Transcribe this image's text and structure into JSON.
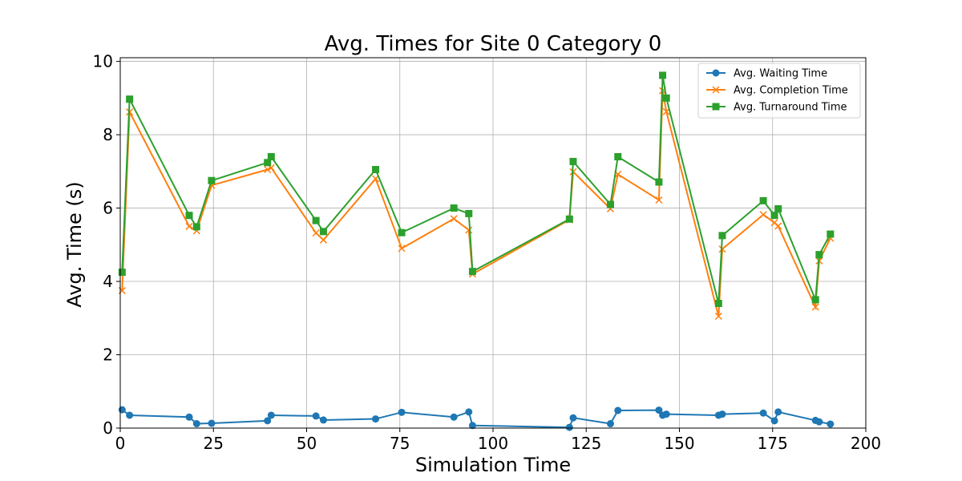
{
  "chart_data": {
    "type": "line",
    "title": "Avg. Times for Site 0 Category 0",
    "xlabel": "Simulation Time",
    "ylabel": "Avg. Time (s)",
    "xlim": [
      0,
      200
    ],
    "ylim": [
      0,
      10.1
    ],
    "xticks": [
      0,
      25,
      50,
      75,
      100,
      125,
      150,
      175,
      200
    ],
    "yticks": [
      0,
      2,
      4,
      6,
      8,
      10
    ],
    "grid": true,
    "legend_position": "top-right",
    "x": [
      0.5,
      2.5,
      18.5,
      20.5,
      24.5,
      39.5,
      40.5,
      52.5,
      54.5,
      68.5,
      75.5,
      89.5,
      93.5,
      94.5,
      120.5,
      121.5,
      131.5,
      133.5,
      144.5,
      145.5,
      146.5,
      160.5,
      161.5,
      172.5,
      175.5,
      176.5,
      186.5,
      187.5,
      190.5
    ],
    "series": [
      {
        "name": "Avg. Waiting Time",
        "color": "#1f77b4",
        "marker": "circle",
        "values": [
          0.5,
          0.35,
          0.3,
          0.12,
          0.13,
          0.2,
          0.35,
          0.33,
          0.22,
          0.25,
          0.43,
          0.3,
          0.44,
          0.07,
          0.02,
          0.28,
          0.12,
          0.48,
          0.49,
          0.35,
          0.38,
          0.35,
          0.38,
          0.41,
          0.2,
          0.44,
          0.21,
          0.17,
          0.11
        ]
      },
      {
        "name": "Avg. Completion Time",
        "color": "#ff7f0e",
        "marker": "x",
        "values": [
          3.75,
          8.62,
          5.5,
          5.38,
          6.62,
          7.05,
          7.1,
          5.32,
          5.13,
          6.8,
          4.9,
          5.71,
          5.4,
          4.2,
          5.68,
          6.99,
          5.98,
          6.92,
          6.22,
          9.2,
          8.63,
          3.05,
          4.88,
          5.82,
          5.6,
          5.51,
          3.3,
          4.56,
          5.18
        ]
      },
      {
        "name": "Avg. Turnaround Time",
        "color": "#2ca02c",
        "marker": "square",
        "values": [
          4.25,
          8.97,
          5.8,
          5.49,
          6.75,
          7.24,
          7.4,
          5.66,
          5.36,
          7.05,
          5.33,
          6.0,
          5.85,
          4.27,
          5.7,
          7.27,
          6.1,
          7.4,
          6.71,
          9.62,
          9.0,
          3.4,
          5.25,
          6.2,
          5.8,
          5.98,
          3.5,
          4.73,
          5.29
        ]
      }
    ]
  }
}
